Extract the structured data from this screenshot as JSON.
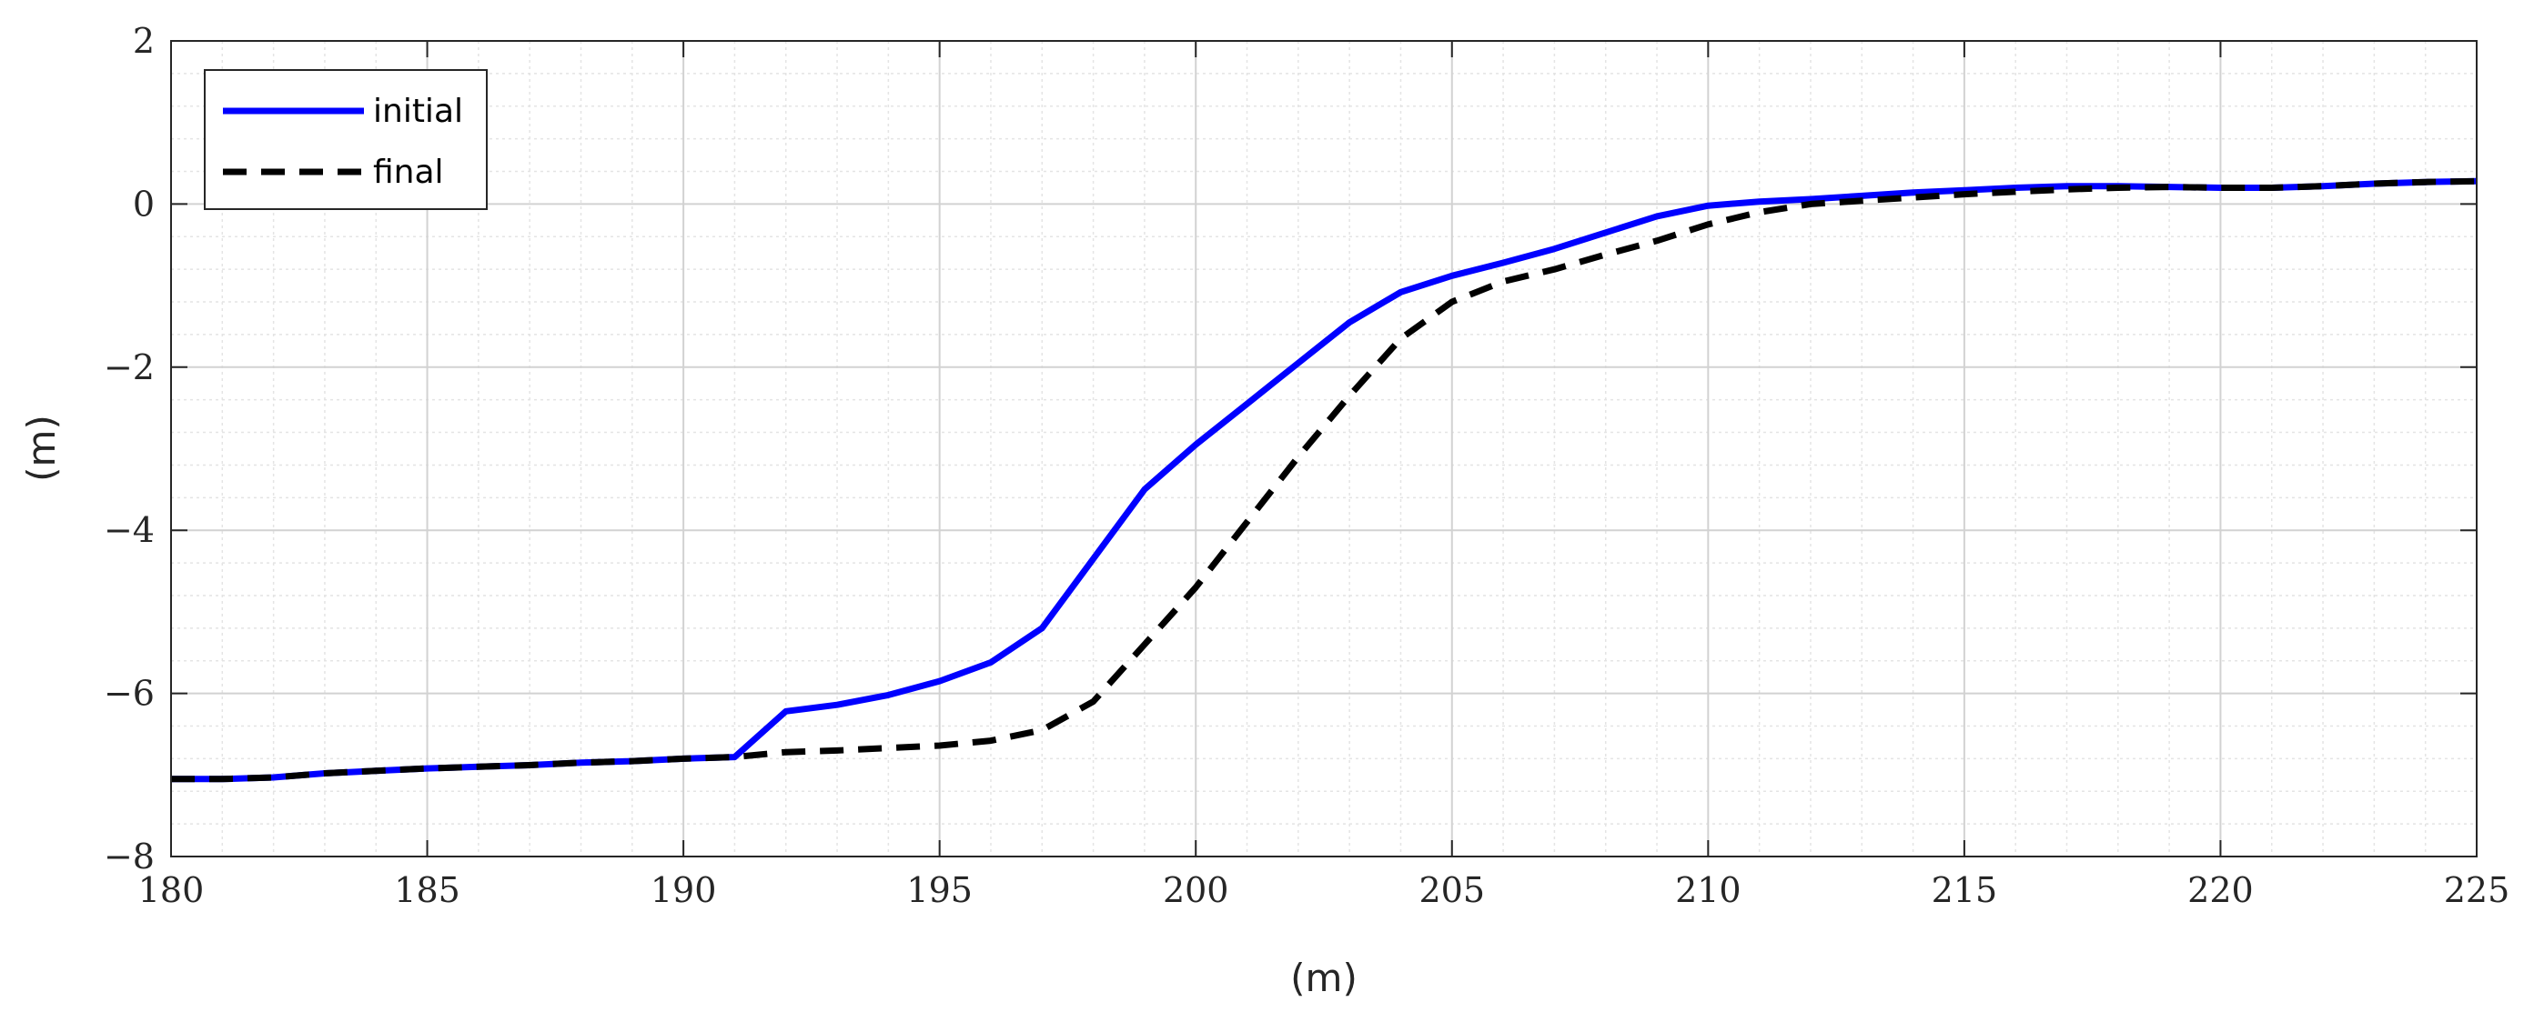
{
  "chart_data": {
    "type": "line",
    "title": "",
    "xlabel": "(m)",
    "ylabel": "(m)",
    "xlim": [
      180,
      225
    ],
    "ylim": [
      -8,
      2
    ],
    "x_ticks": [
      180,
      185,
      190,
      195,
      200,
      205,
      210,
      215,
      220,
      225
    ],
    "x_tick_labels": [
      "180",
      "185",
      "190",
      "195",
      "200",
      "205",
      "210",
      "215",
      "220",
      "225"
    ],
    "y_ticks": [
      -8,
      -6,
      -4,
      -2,
      0,
      2
    ],
    "y_tick_labels": [
      "−8",
      "−6",
      "−4",
      "−2",
      "0",
      "2"
    ],
    "grid": true,
    "minor_grid": true,
    "legend_position": "top-left",
    "series": [
      {
        "name": "initial",
        "color": "#0000ff",
        "style": "solid",
        "x": [
          180,
          181,
          182,
          183,
          184,
          185,
          186,
          187,
          188,
          189,
          190,
          191,
          192,
          193,
          194,
          195,
          196,
          197,
          198,
          199,
          200,
          201,
          202,
          203,
          204,
          205,
          206,
          207,
          208,
          209,
          210,
          211,
          212,
          213,
          214,
          215,
          216,
          217,
          218,
          219,
          220,
          221,
          222,
          223,
          224,
          225
        ],
        "y": [
          -7.05,
          -7.05,
          -7.03,
          -6.98,
          -6.95,
          -6.92,
          -6.9,
          -6.88,
          -6.85,
          -6.83,
          -6.8,
          -6.78,
          -6.22,
          -6.14,
          -6.02,
          -5.85,
          -5.62,
          -5.2,
          -4.35,
          -3.5,
          -2.95,
          -2.45,
          -1.95,
          -1.45,
          -1.08,
          -0.88,
          -0.72,
          -0.55,
          -0.35,
          -0.15,
          -0.02,
          0.03,
          0.06,
          0.1,
          0.14,
          0.17,
          0.2,
          0.22,
          0.22,
          0.21,
          0.2,
          0.2,
          0.22,
          0.25,
          0.27,
          0.28
        ]
      },
      {
        "name": "final",
        "color": "#000000",
        "style": "dashed",
        "x": [
          180,
          181,
          182,
          183,
          184,
          185,
          186,
          187,
          188,
          189,
          190,
          191,
          192,
          193,
          194,
          195,
          196,
          197,
          198,
          199,
          200,
          201,
          202,
          203,
          204,
          205,
          206,
          207,
          208,
          209,
          210,
          211,
          212,
          213,
          214,
          215,
          216,
          217,
          218,
          219,
          220,
          221,
          222,
          223,
          224,
          225
        ],
        "y": [
          -7.05,
          -7.05,
          -7.03,
          -6.98,
          -6.95,
          -6.92,
          -6.9,
          -6.88,
          -6.85,
          -6.83,
          -6.8,
          -6.78,
          -6.72,
          -6.7,
          -6.67,
          -6.64,
          -6.58,
          -6.45,
          -6.1,
          -5.4,
          -4.7,
          -3.9,
          -3.1,
          -2.35,
          -1.65,
          -1.2,
          -0.95,
          -0.8,
          -0.62,
          -0.45,
          -0.25,
          -0.1,
          0.0,
          0.04,
          0.08,
          0.12,
          0.15,
          0.18,
          0.2,
          0.21,
          0.2,
          0.2,
          0.22,
          0.25,
          0.27,
          0.28
        ]
      }
    ]
  }
}
